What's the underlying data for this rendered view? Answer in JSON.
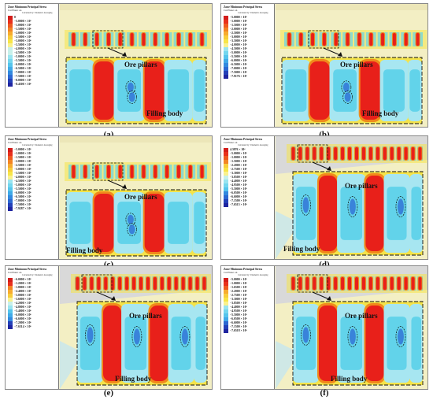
{
  "panels": [
    {
      "id": "a",
      "label": "(a)",
      "legend_title": "Zone Minimum Principal Stress",
      "legend_sub1": "Cut Plane: on",
      "legend_sub2": "Calculated by: Volumetric Averaging",
      "legend_top_value": "0",
      "legend_values": [
        "−5.0000 × 10⁵",
        "−1.0000 × 10⁶",
        "−1.5000 × 10⁶",
        "−2.0000 × 10⁶",
        "−2.5000 × 10⁶",
        "−3.0000 × 10⁶",
        "−3.5000 × 10⁶",
        "−4.0000 × 10⁶",
        "−4.5000 × 10⁶",
        "−5.0000 × 10⁶",
        "−5.5000 × 10⁶",
        "−6.0000 × 10⁶",
        "−6.5000 × 10⁶",
        "−7.0000 × 10⁶",
        "−7.5000 × 10⁶",
        "−8.0000 × 10⁶",
        "−8.4500 × 10⁶"
      ],
      "ore_label": "Ore pillars",
      "fill_label": "Filling body"
    },
    {
      "id": "b",
      "label": "(b)",
      "legend_title": "Zone Minimum Principal Stress",
      "legend_sub1": "Cut Plane: on",
      "legend_sub2": "Calculated by: Volumetric Averaging",
      "legend_top_value": "",
      "legend_values": [
        "−5.0000 × 10⁵",
        "−1.0000 × 10⁶",
        "−1.5000 × 10⁶",
        "−2.0000 × 10⁶",
        "−2.5000 × 10⁶",
        "−3.0000 × 10⁶",
        "−3.5000 × 10⁶",
        "−4.0000 × 10⁶",
        "−4.5000 × 10⁶",
        "−5.0000 × 10⁶",
        "−5.5000 × 10⁶",
        "−6.0000 × 10⁶",
        "−6.5000 × 10⁶",
        "−7.0000 × 10⁶",
        "−7.5000 × 10⁶",
        "−7.9176 × 10⁶"
      ],
      "ore_label": "Ore pillars",
      "fill_label": "Filling body"
    },
    {
      "id": "c",
      "label": "(c)",
      "legend_title": "Zone Minimum Principal Stress",
      "legend_sub1": "Cut Plane: on",
      "legend_sub2": "Calculated by: Volumetric Averaging",
      "legend_top_value": "",
      "legend_values": [
        "−5.0000 × 10⁵",
        "−1.0000 × 10⁶",
        "−1.5000 × 10⁶",
        "−2.0000 × 10⁶",
        "−2.5000 × 10⁶",
        "−3.0000 × 10⁶",
        "−3.5000 × 10⁶",
        "−4.0000 × 10⁶",
        "−4.5000 × 10⁶",
        "−5.0000 × 10⁶",
        "−5.5000 × 10⁶",
        "−6.0000 × 10⁶",
        "−6.5000 × 10⁶",
        "−7.0000 × 10⁶",
        "−7.5000 × 10⁶",
        "−7.9287 × 10⁶"
      ],
      "ore_label": "Ore pillars",
      "fill_label": "Filling body"
    },
    {
      "id": "d",
      "label": "(d)",
      "legend_title": "Zone Minimum Principal Stress",
      "legend_sub1": "Cut Plane: on",
      "legend_sub2": "Calculated by: Volumetric Averaging",
      "legend_top_value": "4.3076 × 10⁴",
      "legend_values": [
        "−5.0000 × 10⁵",
        "−1.0000 × 10⁶",
        "−1.5000 × 10⁶",
        "−2.2000 × 10⁶",
        "−2.7500 × 10⁶",
        "−3.3000 × 10⁶",
        "−3.8500 × 10⁶",
        "−4.4000 × 10⁶",
        "−4.9500 × 10⁶",
        "−5.5000 × 10⁶",
        "−6.0500 × 10⁶",
        "−6.6000 × 10⁶",
        "−7.1500 × 10⁶",
        "−7.6515 × 10⁶"
      ],
      "ore_label": "Ore pillars",
      "fill_label": "Filling body"
    },
    {
      "id": "e",
      "label": "(e)",
      "legend_title": "Zone Minimum Principal Stress",
      "legend_sub1": "Cut Plane: on",
      "legend_sub2": "Calculated by: Volumetric Averaging",
      "legend_top_value": "",
      "legend_values": [
        "−6.0000 × 10⁵",
        "−1.2000 × 10⁶",
        "−1.8000 × 10⁶",
        "−2.4000 × 10⁶",
        "−3.0000 × 10⁶",
        "−3.6000 × 10⁶",
        "−4.2000 × 10⁶",
        "−4.8000 × 10⁶",
        "−5.4000 × 10⁶",
        "−6.0000 × 10⁶",
        "−6.6000 × 10⁶",
        "−7.2000 × 10⁶",
        "−7.6514 × 10⁶"
      ],
      "ore_label": "Ore pillars",
      "fill_label": "Filling body"
    },
    {
      "id": "f",
      "label": "(f)",
      "legend_title": "Zone Minimum Principal Stress",
      "legend_sub1": "Cut Plane: on",
      "legend_sub2": "Calculated by: Volumetric Averaging",
      "legend_top_value": "",
      "legend_values": [
        "−5.0000 × 10⁵",
        "−1.0000 × 10⁶",
        "−1.6500 × 10⁶",
        "−2.2000 × 10⁶",
        "−2.7500 × 10⁶",
        "−3.3000 × 10⁶",
        "−3.8500 × 10⁶",
        "−4.4000 × 10⁶",
        "−4.9500 × 10⁶",
        "−5.5000 × 10⁶",
        "−6.0500 × 10⁶",
        "−6.6000 × 10⁶",
        "−7.1500 × 10⁶",
        "−7.6518 × 10⁶"
      ],
      "ore_label": "Ore pillars",
      "fill_label": "Filling body"
    }
  ],
  "colors": {
    "red": "#e8201a",
    "orange": "#f08a1c",
    "yellow": "#f4e34a",
    "pale_yellow": "#f3efc4",
    "cyan": "#62d3ea",
    "light_cyan": "#a7e6f1",
    "blue": "#2f6fd6",
    "background_gray": "#d9d9d9"
  }
}
